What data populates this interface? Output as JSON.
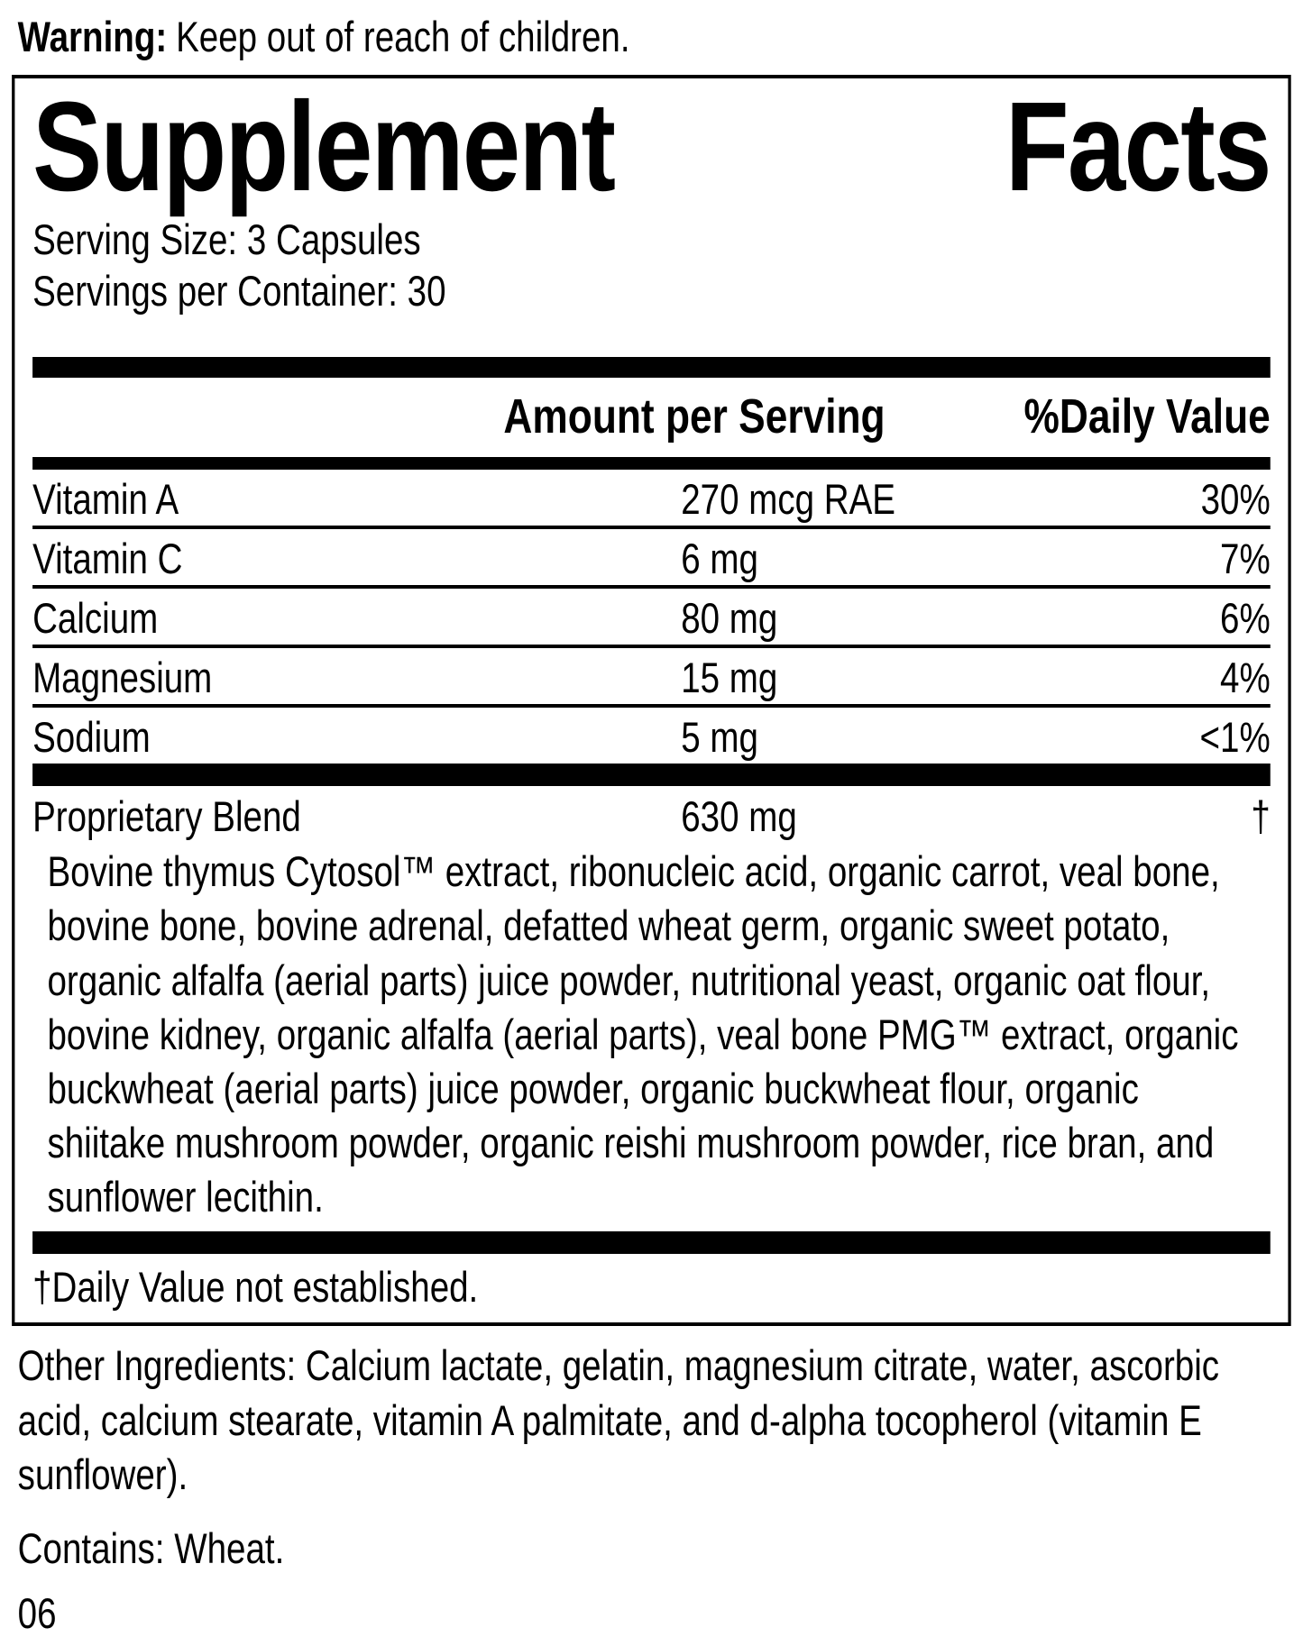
{
  "warning": {
    "label": "Warning:",
    "text": "Keep out of reach of children."
  },
  "panel": {
    "title_word1": "Supplement",
    "title_word2": "Facts",
    "serving_size": "Serving Size: 3 Capsules",
    "servings_per_container": "Servings per Container: 30",
    "header": {
      "amount": "Amount per Serving",
      "daily_value": "%Daily Value"
    },
    "nutrients": [
      {
        "name": "Vitamin A",
        "amount": "270 mcg RAE",
        "dv": "30%"
      },
      {
        "name": "Vitamin C",
        "amount": "6 mg",
        "dv": "7%"
      },
      {
        "name": "Calcium",
        "amount": "80 mg",
        "dv": "6%"
      },
      {
        "name": "Magnesium",
        "amount": "15 mg",
        "dv": "4%"
      },
      {
        "name": "Sodium",
        "amount": "5 mg",
        "dv": "<1%"
      }
    ],
    "proprietary_blend": {
      "name": "Proprietary Blend",
      "amount": "630 mg",
      "dv": "†"
    },
    "blend_description": "Bovine thymus Cytosol™ extract, ribonucleic acid, organic carrot, veal bone, bovine bone, bovine adrenal, defatted wheat germ, organic sweet potato, organic alfalfa (aerial parts) juice powder, nutritional yeast, organic oat flour, bovine kidney, organic alfalfa (aerial parts), veal bone PMG™ extract, organic buckwheat (aerial parts) juice powder, organic buckwheat flour, organic shiitake mushroom powder, organic reishi mushroom powder, rice bran, and sunflower lecithin.",
    "footnote": "†Daily Value not established."
  },
  "other_ingredients": "Other Ingredients: Calcium lactate, gelatin, magnesium citrate, water, ascorbic acid, calcium stearate, vitamin A palmitate, and d-alpha tocopherol (vitamin E sunflower).",
  "contains": "Contains: Wheat.",
  "code": "06"
}
